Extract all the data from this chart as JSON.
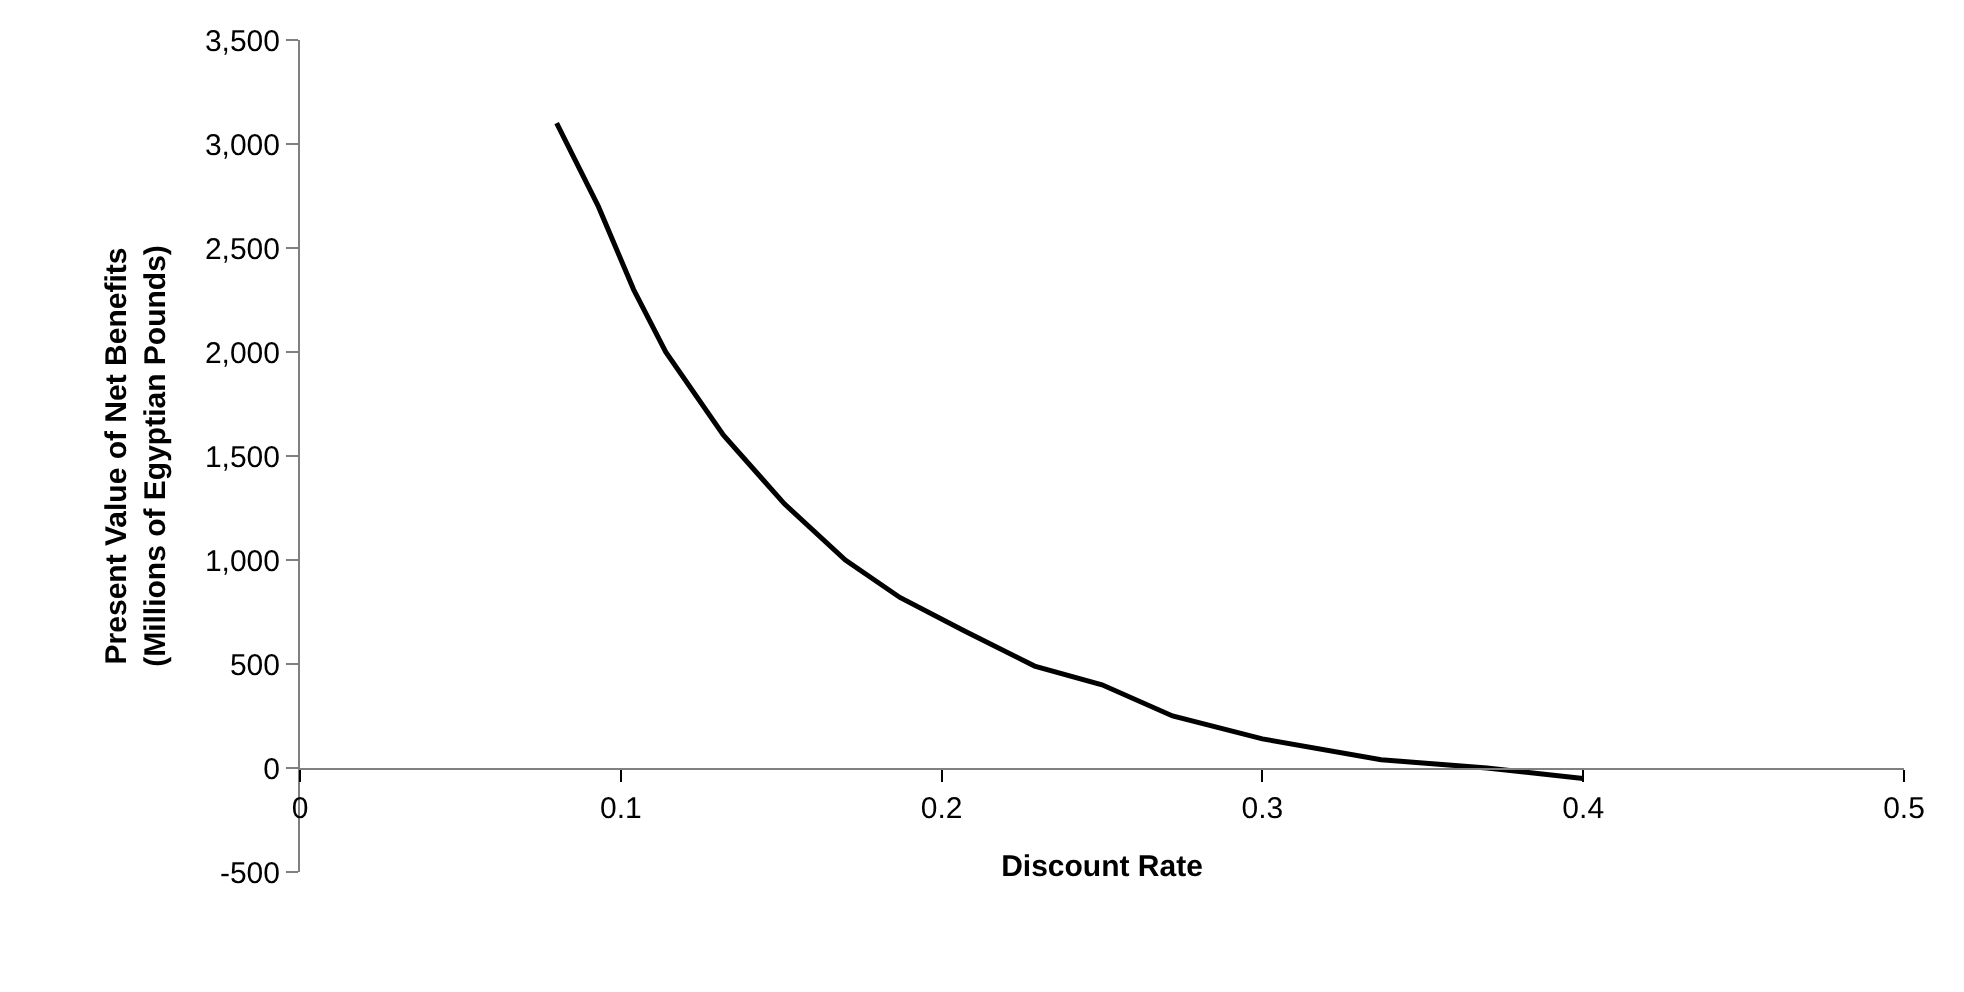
{
  "chart_data": {
    "type": "line",
    "xlabel": "Discount Rate",
    "ylabel": "Present Value of Net Benefits (Millions of Egyptian Pounds)",
    "x": [
      0.08,
      0.093,
      0.104,
      0.114,
      0.132,
      0.151,
      0.17,
      0.187,
      0.207,
      0.229,
      0.25,
      0.272,
      0.3,
      0.337,
      0.37,
      0.4
    ],
    "series": [
      {
        "color": "#000000",
        "values": [
          3100,
          2700,
          2300,
          2000,
          1600,
          1270,
          1000,
          820,
          660,
          490,
          400,
          250,
          140,
          40,
          0,
          -50
        ]
      }
    ],
    "xlim": [
      0,
      0.5
    ],
    "xticks": [
      {
        "value": 0,
        "label": "0"
      },
      0.1,
      0.2,
      0.3,
      0.4,
      0.5
    ],
    "ylim": [
      -500,
      3500
    ],
    "yticks": [
      {
        "value": -500,
        "label": "-500"
      },
      {
        "value": 0,
        "label": "0"
      },
      {
        "value": 500,
        "label": "500"
      },
      {
        "value": 1000,
        "label": "1,000"
      },
      {
        "value": 1500,
        "label": "1,500"
      },
      {
        "value": 2000,
        "label": "2,000"
      },
      {
        "value": 2500,
        "label": "2,500"
      },
      {
        "value": 3000,
        "label": "3,000"
      },
      {
        "value": 3500,
        "label": "3,500"
      }
    ],
    "marker": "none",
    "line_style": "solid"
  }
}
